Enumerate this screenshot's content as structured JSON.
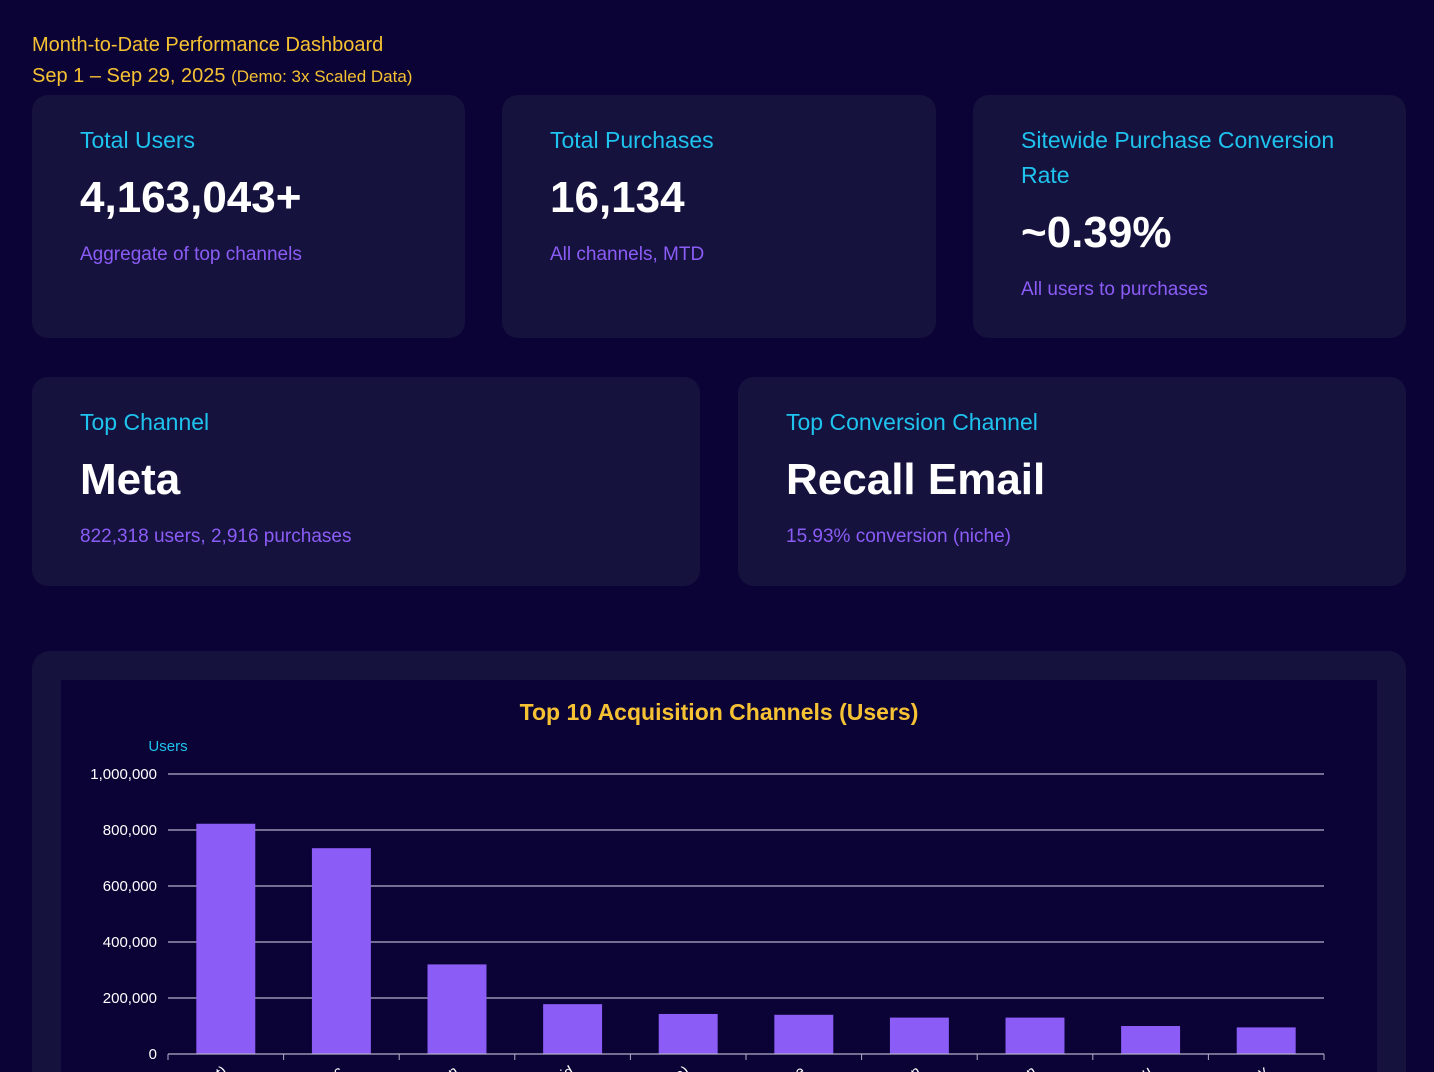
{
  "header": {
    "title": "Month-to-Date Performance Dashboard",
    "date_range": "Sep 1 – Sep 29, 2025",
    "note": "(Demo: 3x Scaled Data)"
  },
  "kpis": {
    "total_users": {
      "label": "Total Users",
      "value": "4,163,043+",
      "sub": "Aggregate of top channels"
    },
    "total_purchases": {
      "label": "Total Purchases",
      "value": "16,134",
      "sub": "All channels, MTD"
    },
    "conversion_rate": {
      "label": "Sitewide Purchase Conversion Rate",
      "value": "~0.39%",
      "sub": "All users to purchases"
    },
    "top_channel": {
      "label": "Top Channel",
      "value": "Meta",
      "sub": "822,318 users, 2,916 purchases"
    },
    "top_conversion_channel": {
      "label": "Top Conversion Channel",
      "value": "Recall Email",
      "sub": "15.93% conversion (niche)"
    }
  },
  "colors": {
    "background": "#0b0335",
    "card": "#16123e",
    "accent_yellow": "#f6c233",
    "accent_cyan": "#1ec3ee",
    "accent_purple": "#8b5cf6",
    "bar": "#8b5cf6",
    "grid": "#b3b0c9"
  },
  "chart_data": {
    "type": "bar",
    "title": "Top 10 Acquisition Channels (Users)",
    "ylabel": "Users",
    "xlabel": "",
    "ylim": [
      0,
      1000000
    ],
    "yticks": [
      0,
      200000,
      400000,
      600000,
      800000,
      1000000
    ],
    "ytick_labels": [
      "0",
      "200,000",
      "400,000",
      "600,000",
      "800,000",
      "1,000,000"
    ],
    "grid": true,
    "categories": [
      "pt)",
      "nc",
      "tion",
      "aid",
      "ne)",
      "ge",
      "tion",
      "tion",
      "nu",
      "lay"
    ],
    "values": [
      822318,
      735000,
      320000,
      178000,
      143000,
      140000,
      130000,
      130000,
      100000,
      95000
    ]
  }
}
